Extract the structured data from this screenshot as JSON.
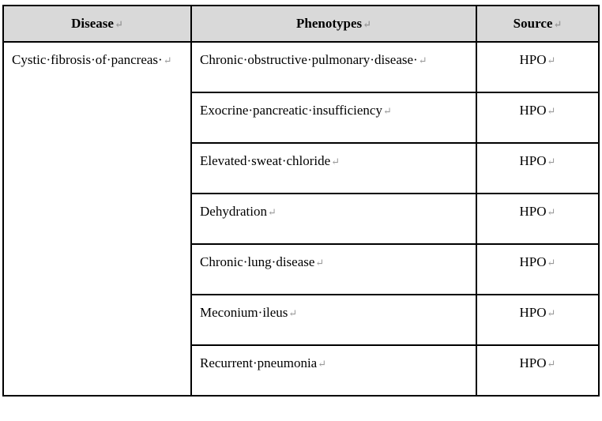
{
  "table": {
    "headers": {
      "disease": "Disease",
      "phenotypes": "Phenotypes",
      "source": "Source"
    },
    "disease": "Cystic·fibrosis·of·pancreas·",
    "rows": [
      {
        "phenotype": "Chronic·obstructive·pulmonary·disease·",
        "source": "HPO"
      },
      {
        "phenotype": "Exocrine·pancreatic·insufficiency",
        "source": "HPO"
      },
      {
        "phenotype": "Elevated·sweat·chloride",
        "source": "HPO"
      },
      {
        "phenotype": "Dehydration",
        "source": "HPO"
      },
      {
        "phenotype": "Chronic·lung·disease",
        "source": "HPO"
      },
      {
        "phenotype": "Meconium·ileus",
        "source": "HPO"
      },
      {
        "phenotype": "Recurrent·pneumonia",
        "source": "HPO"
      }
    ],
    "return_mark": "↵"
  }
}
